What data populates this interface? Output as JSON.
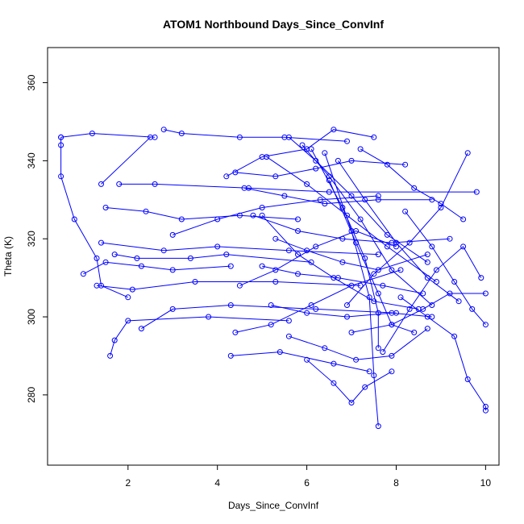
{
  "chart_data": {
    "type": "line",
    "title": "ATOM1 Northbound Days_Since_ConvInf",
    "xlabel": "Days_Since_ConvInf",
    "ylabel": "Theta (K)",
    "xlim": [
      0.2,
      10.3
    ],
    "ylim": [
      262,
      369
    ],
    "x_ticks": [
      2,
      4,
      6,
      8,
      10
    ],
    "y_ticks": [
      280,
      300,
      320,
      340,
      360
    ],
    "grid": false,
    "legend": "none",
    "color": "#0000ff",
    "marker": "open-circle",
    "series": [
      {
        "points": [
          [
            0.5,
            346
          ],
          [
            0.5,
            344
          ],
          [
            0.5,
            336
          ],
          [
            0.8,
            325
          ],
          [
            1.3,
            315
          ],
          [
            1.4,
            308
          ],
          [
            2.0,
            305
          ]
        ]
      },
      {
        "points": [
          [
            0.5,
            346
          ],
          [
            1.2,
            347
          ],
          [
            2.6,
            346
          ]
        ]
      },
      {
        "points": [
          [
            2.8,
            348
          ],
          [
            3.2,
            347
          ],
          [
            4.5,
            346
          ],
          [
            5.5,
            346
          ],
          [
            6.9,
            345
          ]
        ]
      },
      {
        "points": [
          [
            1.4,
            334
          ],
          [
            2.5,
            346
          ]
        ]
      },
      {
        "points": [
          [
            1.8,
            334
          ],
          [
            2.6,
            334
          ],
          [
            4.7,
            333
          ],
          [
            6.5,
            332
          ],
          [
            9.8,
            332
          ]
        ]
      },
      {
        "points": [
          [
            1.5,
            328
          ],
          [
            2.4,
            327
          ],
          [
            3.2,
            325
          ],
          [
            4.5,
            326
          ],
          [
            5.8,
            325
          ]
        ]
      },
      {
        "points": [
          [
            1.4,
            319
          ],
          [
            2.8,
            317
          ],
          [
            4.0,
            318
          ],
          [
            5.6,
            317
          ],
          [
            7.6,
            316
          ]
        ]
      },
      {
        "points": [
          [
            1.7,
            316
          ],
          [
            2.2,
            315
          ],
          [
            3.4,
            315
          ],
          [
            4.2,
            316
          ],
          [
            6.1,
            314
          ]
        ]
      },
      {
        "points": [
          [
            1.0,
            311
          ],
          [
            1.5,
            314
          ],
          [
            2.3,
            313
          ],
          [
            3.0,
            312
          ],
          [
            4.3,
            313
          ]
        ]
      },
      {
        "points": [
          [
            1.3,
            308
          ],
          [
            2.1,
            307
          ],
          [
            3.5,
            309
          ],
          [
            5.3,
            309
          ],
          [
            7.2,
            308
          ]
        ]
      },
      {
        "points": [
          [
            1.6,
            290
          ],
          [
            1.7,
            294
          ],
          [
            2.0,
            299
          ],
          [
            3.8,
            300
          ],
          [
            5.6,
            299
          ]
        ]
      },
      {
        "points": [
          [
            2.3,
            297
          ],
          [
            3.0,
            302
          ],
          [
            4.3,
            303
          ],
          [
            6.2,
            302
          ],
          [
            8.0,
            301
          ]
        ]
      },
      {
        "points": [
          [
            4.3,
            290
          ],
          [
            5.4,
            291
          ],
          [
            6.6,
            288
          ],
          [
            7.4,
            286
          ]
        ]
      },
      {
        "points": [
          [
            3.0,
            321
          ],
          [
            4.0,
            325
          ],
          [
            5.0,
            328
          ],
          [
            6.3,
            330
          ],
          [
            7.6,
            331
          ]
        ]
      },
      {
        "points": [
          [
            4.2,
            336
          ],
          [
            5.0,
            341
          ],
          [
            6.0,
            343
          ],
          [
            6.6,
            348
          ],
          [
            7.5,
            346
          ]
        ]
      },
      {
        "points": [
          [
            4.4,
            337
          ],
          [
            5.3,
            336
          ],
          [
            6.2,
            338
          ],
          [
            7.0,
            340
          ],
          [
            8.2,
            339
          ]
        ]
      },
      {
        "points": [
          [
            4.6,
            333
          ],
          [
            5.5,
            331
          ],
          [
            6.4,
            329
          ],
          [
            7.6,
            330
          ],
          [
            8.8,
            330
          ]
        ]
      },
      {
        "points": [
          [
            4.8,
            326
          ],
          [
            5.8,
            322
          ],
          [
            6.8,
            320
          ],
          [
            7.9,
            319
          ],
          [
            9.2,
            320
          ]
        ]
      },
      {
        "points": [
          [
            4.5,
            308
          ],
          [
            5.3,
            312
          ],
          [
            6.2,
            318
          ],
          [
            7.1,
            322
          ],
          [
            8.0,
            318
          ]
        ]
      },
      {
        "points": [
          [
            4.4,
            296
          ],
          [
            5.2,
            298
          ],
          [
            6.1,
            303
          ],
          [
            7.0,
            308
          ],
          [
            8.1,
            312
          ]
        ]
      },
      {
        "points": [
          [
            5.0,
            326
          ],
          [
            5.8,
            316
          ],
          [
            6.6,
            310
          ],
          [
            7.5,
            304
          ],
          [
            8.5,
            302
          ]
        ]
      },
      {
        "points": [
          [
            5.1,
            341
          ],
          [
            6.0,
            334
          ],
          [
            6.9,
            326
          ],
          [
            7.8,
            318
          ],
          [
            8.9,
            309
          ]
        ]
      },
      {
        "points": [
          [
            5.6,
            346
          ],
          [
            6.2,
            340
          ],
          [
            7.0,
            331
          ],
          [
            7.8,
            321
          ],
          [
            8.7,
            314
          ]
        ]
      },
      {
        "points": [
          [
            5.9,
            344
          ],
          [
            6.5,
            336
          ],
          [
            7.2,
            325
          ],
          [
            7.9,
            312
          ],
          [
            8.8,
            303
          ]
        ]
      },
      {
        "points": [
          [
            6.1,
            343
          ],
          [
            6.8,
            328
          ],
          [
            7.3,
            315
          ],
          [
            7.6,
            301
          ],
          [
            7.6,
            292
          ]
        ]
      },
      {
        "points": [
          [
            6.4,
            342
          ],
          [
            7.0,
            322
          ],
          [
            7.4,
            305
          ],
          [
            7.5,
            285
          ],
          [
            7.6,
            272
          ]
        ]
      },
      {
        "points": [
          [
            6.5,
            335
          ],
          [
            7.1,
            319
          ],
          [
            7.6,
            306
          ],
          [
            7.9,
            298
          ],
          [
            8.4,
            296
          ]
        ]
      },
      {
        "points": [
          [
            6.7,
            340
          ],
          [
            7.3,
            330
          ],
          [
            8.0,
            319
          ],
          [
            8.7,
            310
          ],
          [
            9.4,
            304
          ]
        ]
      },
      {
        "points": [
          [
            5.3,
            320
          ],
          [
            6.0,
            317
          ],
          [
            6.8,
            314
          ],
          [
            7.6,
            312
          ],
          [
            8.7,
            316
          ]
        ]
      },
      {
        "points": [
          [
            5.0,
            313
          ],
          [
            5.8,
            311
          ],
          [
            6.7,
            310
          ],
          [
            7.7,
            308
          ],
          [
            8.6,
            306
          ]
        ]
      },
      {
        "points": [
          [
            5.2,
            303
          ],
          [
            6.0,
            301
          ],
          [
            6.9,
            300
          ],
          [
            7.9,
            301
          ],
          [
            8.8,
            300
          ]
        ]
      },
      {
        "points": [
          [
            5.6,
            295
          ],
          [
            6.4,
            292
          ],
          [
            7.1,
            289
          ],
          [
            7.9,
            290
          ],
          [
            8.7,
            297
          ]
        ]
      },
      {
        "points": [
          [
            6.0,
            289
          ],
          [
            6.6,
            283
          ],
          [
            7.0,
            278
          ],
          [
            7.3,
            282
          ],
          [
            7.9,
            286
          ]
        ]
      },
      {
        "points": [
          [
            6.9,
            303
          ],
          [
            7.5,
            311
          ],
          [
            8.3,
            319
          ],
          [
            9.0,
            328
          ],
          [
            9.6,
            342
          ]
        ]
      },
      {
        "points": [
          [
            7.2,
            343
          ],
          [
            7.8,
            339
          ],
          [
            8.4,
            333
          ],
          [
            9.0,
            329
          ],
          [
            9.5,
            325
          ]
        ]
      },
      {
        "points": [
          [
            7.0,
            296
          ],
          [
            7.9,
            298
          ],
          [
            8.6,
            302
          ],
          [
            9.2,
            306
          ],
          [
            10.0,
            306
          ]
        ]
      },
      {
        "points": [
          [
            8.1,
            305
          ],
          [
            8.7,
            300
          ],
          [
            9.3,
            295
          ],
          [
            9.6,
            284
          ],
          [
            10.0,
            277
          ],
          [
            10.0,
            276
          ]
        ]
      },
      {
        "points": [
          [
            8.2,
            327
          ],
          [
            8.8,
            318
          ],
          [
            9.3,
            309
          ],
          [
            9.7,
            302
          ],
          [
            10.0,
            298
          ]
        ]
      },
      {
        "points": [
          [
            7.7,
            291
          ],
          [
            8.3,
            302
          ],
          [
            8.9,
            312
          ],
          [
            9.5,
            318
          ],
          [
            9.9,
            310
          ]
        ]
      }
    ]
  }
}
